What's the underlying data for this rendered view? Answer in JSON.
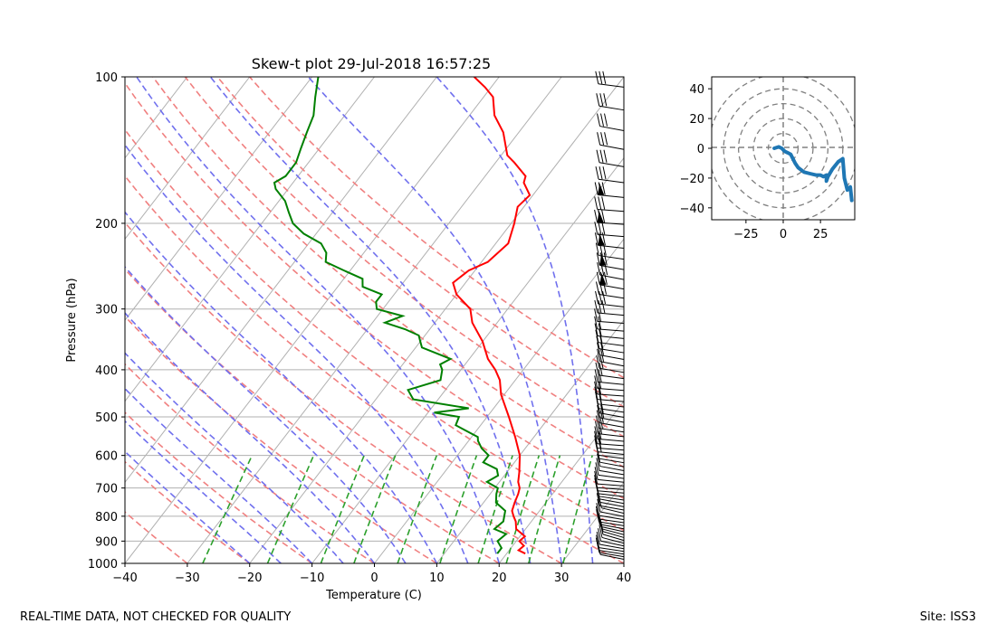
{
  "footer": {
    "left_text": "REAL-TIME DATA, NOT CHECKED FOR QUALITY",
    "right_text": "Site: ISS3"
  },
  "chart_data": [
    {
      "type": "line",
      "subtype": "skew-t log-p diagram",
      "title": "Skew-t plot 29-Jul-2018 16:57:25",
      "xlabel": "Temperature (C)",
      "ylabel": "Pressure (hPa)",
      "xlim": [
        -40,
        40
      ],
      "ylim": [
        1000,
        100
      ],
      "y_scale": "log",
      "x_ticks": [
        "−40",
        "−30",
        "−20",
        "−10",
        "0",
        "10",
        "20",
        "30",
        "40"
      ],
      "y_ticks": [
        "100",
        "200",
        "300",
        "400",
        "500",
        "600",
        "700",
        "800",
        "900",
        "1000"
      ],
      "grid": true,
      "colors": {
        "temperature": "#ff0000",
        "dewpoint": "#008000",
        "dry_adiabats": "#f08080",
        "moist_adiabats": "#7070ee",
        "mixing_ratio": "#2ca02c",
        "isotherms": "#b0b0b0",
        "wind_barbs": "#000000"
      },
      "series": [
        {
          "role": "temperature",
          "pressure": [
            955,
            940,
            920,
            900,
            880,
            850,
            820,
            800,
            780,
            750,
            720,
            700,
            680,
            650,
            600,
            550,
            500,
            450,
            420,
            400,
            380,
            350,
            320,
            300,
            280,
            265,
            250,
            240,
            220,
            200,
            185,
            175,
            165,
            160,
            150,
            145,
            130,
            120,
            110,
            105,
            100
          ],
          "temperature_c": [
            23,
            21.5,
            21.8,
            20.5,
            20.8,
            18.5,
            17.5,
            16.5,
            15.6,
            15,
            14.5,
            14,
            13,
            12,
            10,
            7,
            3.5,
            -0.5,
            -2.5,
            -4.5,
            -7,
            -10,
            -14,
            -16,
            -20,
            -22,
            -21,
            -19,
            -18,
            -19.5,
            -21,
            -20.5,
            -23,
            -23.5,
            -27,
            -29,
            -32.5,
            -36,
            -38.5,
            -41,
            -44
          ]
        },
        {
          "role": "dewpoint",
          "pressure": [
            955,
            930,
            900,
            870,
            850,
            820,
            800,
            780,
            750,
            720,
            700,
            680,
            660,
            640,
            620,
            600,
            580,
            560,
            550,
            520,
            500,
            490,
            480,
            460,
            440,
            420,
            400,
            390,
            380,
            360,
            350,
            340,
            330,
            320,
            310,
            300,
            290,
            280,
            270,
            260,
            250,
            240,
            230,
            220,
            210,
            200,
            190,
            180,
            170,
            165,
            160,
            150,
            140,
            130,
            120,
            110,
            100
          ],
          "dewpoint_c": [
            18.5,
            18.5,
            17,
            17.5,
            15,
            15.5,
            15,
            14.5,
            12,
            11,
            10.5,
            8,
            9,
            8,
            5,
            5,
            3,
            1.5,
            1,
            -4,
            -4.5,
            -9,
            -4,
            -14,
            -16,
            -12,
            -13,
            -14,
            -13,
            -19,
            -20,
            -21,
            -24,
            -28,
            -26,
            -31,
            -32,
            -32,
            -36,
            -37,
            -41,
            -45,
            -46,
            -48,
            -52,
            -55,
            -57,
            -59,
            -62,
            -63,
            -62,
            -62,
            -63,
            -64,
            -65,
            -67,
            -69
          ]
        }
      ],
      "wind_barbs": {
        "note": "Black wind barbs along the right edge of the skew-t axes, from near the surface to 100 hPa."
      }
    },
    {
      "type": "line",
      "subtype": "hodograph",
      "title": "",
      "xlim": [
        -48,
        48
      ],
      "ylim": [
        -48,
        48
      ],
      "x_ticks": [
        "−25",
        "0",
        "25"
      ],
      "y_ticks": [
        "40",
        "20",
        "0",
        "−20",
        "−40"
      ],
      "rings": [
        10,
        20,
        30,
        40,
        50
      ],
      "colors": {
        "trace": "#1f77b4",
        "rings": "#808080"
      },
      "trace_u": [
        -6,
        -3,
        -1,
        1,
        3,
        5,
        6,
        8,
        10,
        14,
        18,
        22,
        25,
        27,
        29,
        29,
        30,
        33,
        37,
        40,
        41,
        43,
        45,
        46
      ],
      "trace_v": [
        0,
        1,
        0,
        -2,
        -3,
        -4,
        -6,
        -10,
        -13,
        -16,
        -17,
        -18,
        -18,
        -19,
        -18,
        -22,
        -19,
        -14,
        -9,
        -7,
        -20,
        -28,
        -26,
        -35
      ]
    }
  ]
}
